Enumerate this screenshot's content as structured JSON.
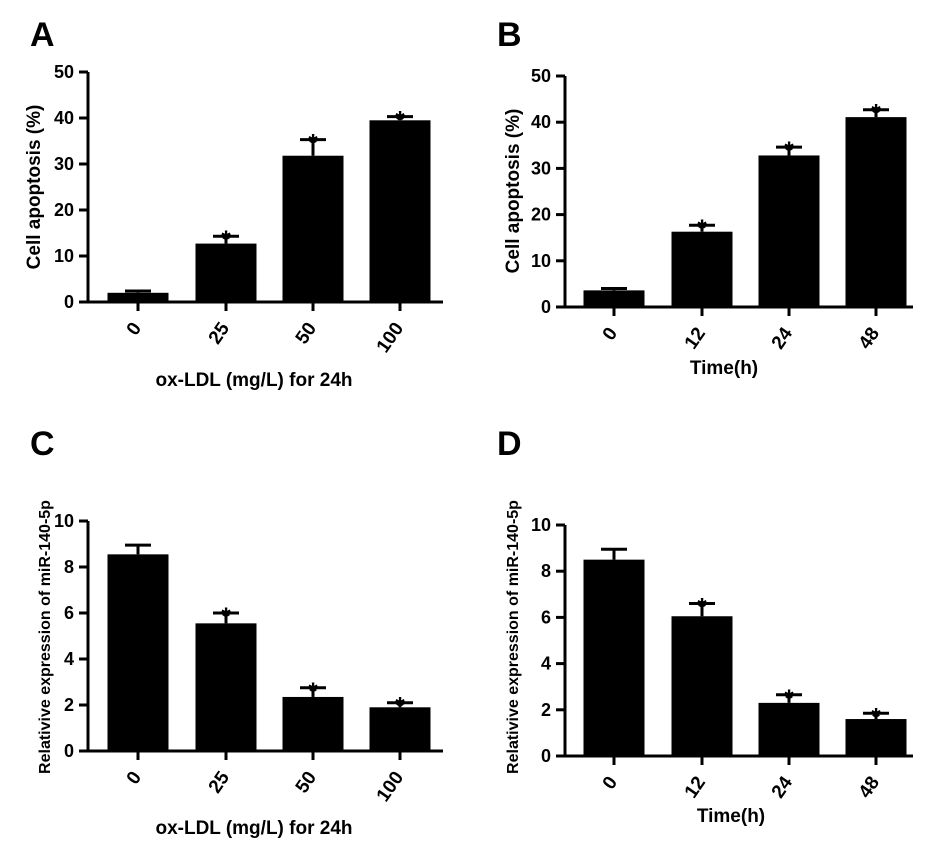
{
  "chart_data": [
    {
      "panel": "A",
      "type": "bar",
      "categories": [
        "0",
        "25",
        "50",
        "100"
      ],
      "values": [
        2.0,
        12.7,
        31.8,
        39.5
      ],
      "errors": [
        0.4,
        1.6,
        3.5,
        0.8
      ],
      "significance": [
        "",
        "*",
        "*",
        "*"
      ],
      "xlabel": "ox-LDL (mg/L) for 24h",
      "ylabel": "Cell apoptosis (%)",
      "ylim": [
        0,
        50
      ],
      "yticks": [
        "0",
        "10",
        "20",
        "30",
        "40",
        "50"
      ],
      "bar_color": "#000000"
    },
    {
      "panel": "B",
      "type": "bar",
      "categories": [
        "0",
        "12",
        "24",
        "48"
      ],
      "values": [
        3.6,
        16.3,
        32.8,
        41.1
      ],
      "errors": [
        0.4,
        1.4,
        1.8,
        1.6
      ],
      "significance": [
        "",
        "*",
        "*",
        "*"
      ],
      "xlabel": "Time(h)",
      "ylabel": "Cell apoptosis (%)",
      "ylim": [
        0,
        50
      ],
      "yticks": [
        "0",
        "10",
        "20",
        "30",
        "40",
        "50"
      ],
      "bar_color": "#000000"
    },
    {
      "panel": "C",
      "type": "bar",
      "categories": [
        "0",
        "25",
        "50",
        "100"
      ],
      "values": [
        8.55,
        5.55,
        2.35,
        1.9
      ],
      "errors": [
        0.4,
        0.45,
        0.4,
        0.2
      ],
      "significance": [
        "",
        "*",
        "*",
        "*"
      ],
      "xlabel": "ox-LDL (mg/L) for 24h",
      "ylabel": "Relativive expression of miR-140-5p",
      "ylim": [
        0,
        10
      ],
      "yticks": [
        "0",
        "2",
        "4",
        "6",
        "8",
        "10"
      ],
      "bar_color": "#000000"
    },
    {
      "panel": "D",
      "type": "bar",
      "categories": [
        "0",
        "12",
        "24",
        "48"
      ],
      "values": [
        8.5,
        6.05,
        2.3,
        1.6
      ],
      "errors": [
        0.45,
        0.55,
        0.35,
        0.25
      ],
      "significance": [
        "",
        "*",
        "*",
        "*"
      ],
      "xlabel": "Time(h)",
      "ylabel": "Relativive expression of miR-140-5p",
      "ylim": [
        0,
        10
      ],
      "yticks": [
        "0",
        "2",
        "4",
        "6",
        "8",
        "10"
      ],
      "bar_color": "#000000"
    }
  ]
}
